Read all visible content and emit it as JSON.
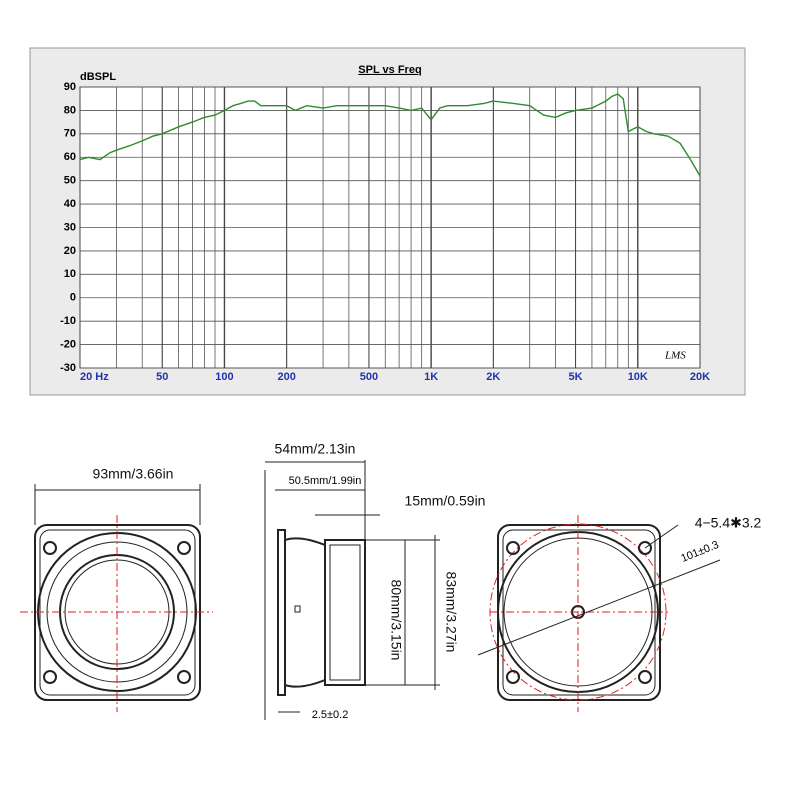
{
  "chart_data": {
    "type": "line",
    "title": "SPL vs Freq",
    "ylabel": "dBSPL",
    "annotation": "LMS",
    "xscale": "log",
    "xlim": [
      20,
      20000
    ],
    "ylim": [
      -30,
      90
    ],
    "xticks": [
      {
        "value": 20,
        "label": "20 Hz"
      },
      50,
      100,
      200,
      500,
      {
        "value": 1000,
        "label": "1K"
      },
      {
        "value": 2000,
        "label": "2K"
      },
      {
        "value": 5000,
        "label": "5K"
      },
      {
        "value": 10000,
        "label": "10K"
      },
      {
        "value": 20000,
        "label": "20K"
      }
    ],
    "yticks": [
      -30,
      -20,
      -10,
      0,
      10,
      20,
      30,
      40,
      50,
      60,
      70,
      80,
      90
    ],
    "grid": true,
    "series": [
      {
        "name": "SPL",
        "color": "#2e8b2e",
        "x": [
          20,
          22,
          25,
          28,
          30,
          35,
          40,
          45,
          50,
          60,
          70,
          80,
          90,
          100,
          110,
          120,
          130,
          140,
          150,
          170,
          200,
          220,
          250,
          300,
          350,
          400,
          500,
          600,
          700,
          800,
          900,
          1000,
          1100,
          1200,
          1500,
          1800,
          2000,
          2500,
          3000,
          3500,
          4000,
          4500,
          5000,
          6000,
          7000,
          7500,
          8000,
          8500,
          9000,
          10000,
          11000,
          12000,
          14000,
          16000,
          18000,
          20000
        ],
        "values": [
          59,
          60,
          59,
          62,
          63,
          65,
          67,
          69,
          70,
          73,
          75,
          77,
          78,
          80,
          82,
          83,
          84,
          84,
          82,
          82,
          82,
          80,
          82,
          81,
          82,
          82,
          82,
          82,
          81,
          80,
          81,
          76,
          81,
          82,
          82,
          83,
          84,
          83,
          82,
          78,
          77,
          79,
          80,
          81,
          84,
          86,
          87,
          85,
          71,
          73,
          71,
          70,
          69,
          66,
          59,
          52
        ]
      }
    ]
  },
  "drawing": {
    "front_width": "93mm/3.66in",
    "depth": "54mm/2.13in",
    "depth_inner": "50.5mm/1.99in",
    "magnet": "15mm/0.59in",
    "cone_diameter": "80mm/3.15in",
    "frame_height": "83mm/3.27in",
    "flange": "2.5±0.2",
    "holes": "4−5.4✱3.2",
    "hole_circle": "101±0.3"
  }
}
